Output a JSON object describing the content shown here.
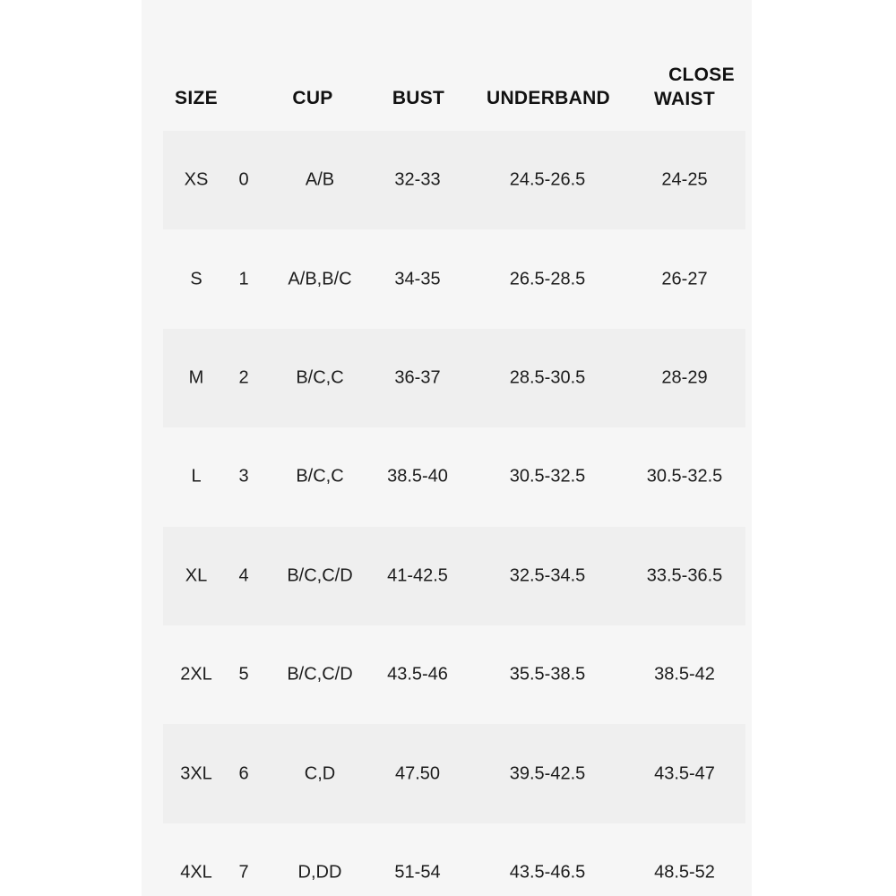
{
  "theme": {
    "page_bg": "#ffffff",
    "panel": "#f6f6f6",
    "stripe": "#efefef",
    "text": "#1c1c1c",
    "header_text": "#111111"
  },
  "table": {
    "headers": {
      "size": "SIZE",
      "cup": "CUP",
      "bust": "BUST",
      "underband": "UNDERBAND",
      "waist_line1": "CLOSE",
      "waist_line2": "WAIST"
    },
    "rows": [
      {
        "size": "XS",
        "num": "0",
        "cup": "A/B",
        "bust": "32-33",
        "underband": "24.5-26.5",
        "waist": "24-25"
      },
      {
        "size": "S",
        "num": "1",
        "cup": "A/B,B/C",
        "bust": "34-35",
        "underband": "26.5-28.5",
        "waist": "26-27"
      },
      {
        "size": "M",
        "num": "2",
        "cup": "B/C,C",
        "bust": "36-37",
        "underband": "28.5-30.5",
        "waist": "28-29"
      },
      {
        "size": "L",
        "num": "3",
        "cup": "B/C,C",
        "bust": "38.5-40",
        "underband": "30.5-32.5",
        "waist": "30.5-32.5"
      },
      {
        "size": "XL",
        "num": "4",
        "cup": "B/C,C/D",
        "bust": "41-42.5",
        "underband": "32.5-34.5",
        "waist": "33.5-36.5"
      },
      {
        "size": "2XL",
        "num": "5",
        "cup": "B/C,C/D",
        "bust": "43.5-46",
        "underband": "35.5-38.5",
        "waist": "38.5-42"
      },
      {
        "size": "3XL",
        "num": "6",
        "cup": "C,D",
        "bust": "47.50",
        "underband": "39.5-42.5",
        "waist": "43.5-47"
      },
      {
        "size": "4XL",
        "num": "7",
        "cup": "D,DD",
        "bust": "51-54",
        "underband": "43.5-46.5",
        "waist": "48.5-52"
      }
    ]
  }
}
